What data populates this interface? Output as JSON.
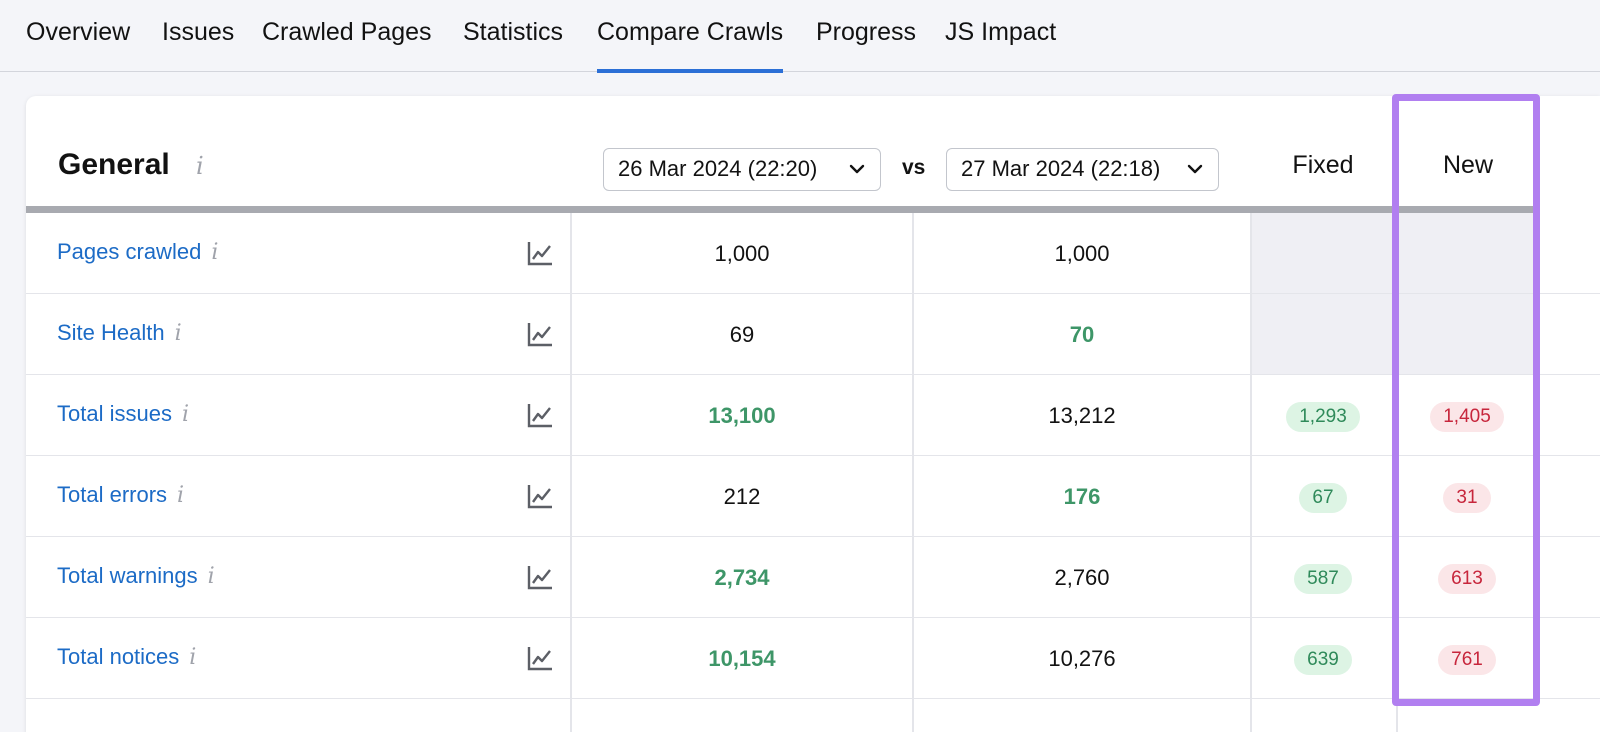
{
  "tabs": [
    {
      "label": "Overview"
    },
    {
      "label": "Issues"
    },
    {
      "label": "Crawled Pages"
    },
    {
      "label": "Statistics"
    },
    {
      "label": "Compare Crawls",
      "active": true
    },
    {
      "label": "Progress"
    },
    {
      "label": "JS Impact"
    }
  ],
  "general": {
    "title": "General",
    "info_glyph": "i",
    "crawl_a": "26 Mar 2024 (22:20)",
    "vs": "vs",
    "crawl_b": "27 Mar 2024 (22:18)",
    "fixed_header": "Fixed",
    "new_header": "New"
  },
  "rows": [
    {
      "label": "Pages crawled",
      "a": "1,000",
      "b": "1,000",
      "fixed": "",
      "new": ""
    },
    {
      "label": "Site Health",
      "a": "69",
      "b": "70",
      "fixed": "",
      "new": ""
    },
    {
      "label": "Total issues",
      "a": "13,100",
      "b": "13,212",
      "fixed": "1,293",
      "new": "1,405"
    },
    {
      "label": "Total errors",
      "a": "212",
      "b": "176",
      "fixed": "67",
      "new": "31"
    },
    {
      "label": "Total warnings",
      "a": "2,734",
      "b": "2,760",
      "fixed": "587",
      "new": "613"
    },
    {
      "label": "Total notices",
      "a": "10,154",
      "b": "10,276",
      "fixed": "639",
      "new": "761"
    }
  ],
  "icons": {
    "info": "info-icon",
    "trend": "line-chart-icon",
    "dropdown": "chevron-down-icon"
  },
  "colors": {
    "accent": "#2b6fd6",
    "link": "#1c6bc6",
    "better": "#3e9668",
    "fixed_bg": "#ddf4e4",
    "new_bg": "#fbe6e8",
    "new_text": "#c7263c",
    "highlight": "#b17ff0"
  }
}
